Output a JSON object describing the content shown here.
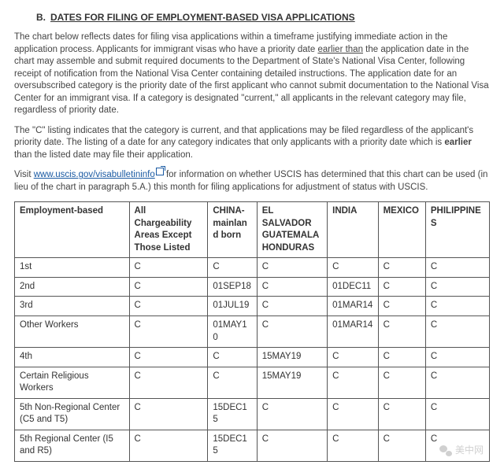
{
  "heading": {
    "letter": "B.",
    "text": "DATES FOR FILING OF EMPLOYMENT-BASED VISA APPLICATIONS"
  },
  "p1a": "The chart below reflects dates for filing visa applications within a timeframe justifying immediate action in the application process. Applicants for immigrant visas who have a priority date ",
  "p1u": "earlier than",
  "p1b": " the application date in the chart may assemble and submit required documents to the Department of State's National Visa Center, following receipt of notification from the National Visa Center containing detailed instructions. The application date for an oversubscribed category is the priority date of the first applicant who cannot submit documentation to the National Visa Center for an immigrant visa. If a category is designated \"current,\" all applicants in the relevant category may file, regardless of priority date.",
  "p2a": "The \"C\" listing indicates that the category is current, and that applications may be filed regardless of the applicant's priority date. The listing of a date for any category indicates that only applicants with a priority date which is ",
  "p2b": "earlier",
  "p2c": " than the listed date may file their application.",
  "p3a": "Visit ",
  "p3link": "www.uscis.gov/visabulletininfo",
  "p3b": " for information on whether USCIS has determined that this chart can be used (in lieu of the chart in paragraph 5.A.) this month for filing applications for adjustment of status with USCIS.",
  "table": {
    "columns": [
      "Employment-based",
      "All Chargeability Areas Except Those Listed",
      "CHINA-mainland born",
      "EL SALVADOR GUATEMALA HONDURAS",
      "INDIA",
      "MEXICO",
      "PHILIPPINES"
    ],
    "rows": [
      [
        "1st",
        "C",
        "C",
        "C",
        "C",
        "C",
        "C"
      ],
      [
        "2nd",
        "C",
        "01SEP18",
        "C",
        "01DEC11",
        "C",
        "C"
      ],
      [
        "3rd",
        "C",
        "01JUL19",
        "C",
        "01MAR14",
        "C",
        "C"
      ],
      [
        "Other Workers",
        "C",
        "01MAY10",
        "C",
        "01MAR14",
        "C",
        "C"
      ],
      [
        "4th",
        "C",
        "C",
        "15MAY19",
        "C",
        "C",
        "C"
      ],
      [
        "Certain Religious Workers",
        "C",
        "C",
        "15MAY19",
        "C",
        "C",
        "C"
      ],
      [
        "5th Non-Regional Center (C5 and T5)",
        "C",
        "15DEC15",
        "C",
        "C",
        "C",
        "C"
      ],
      [
        "5th Regional Center (I5 and R5)",
        "C",
        "15DEC15",
        "C",
        "C",
        "C",
        "C"
      ]
    ]
  },
  "watermark": "美中网"
}
